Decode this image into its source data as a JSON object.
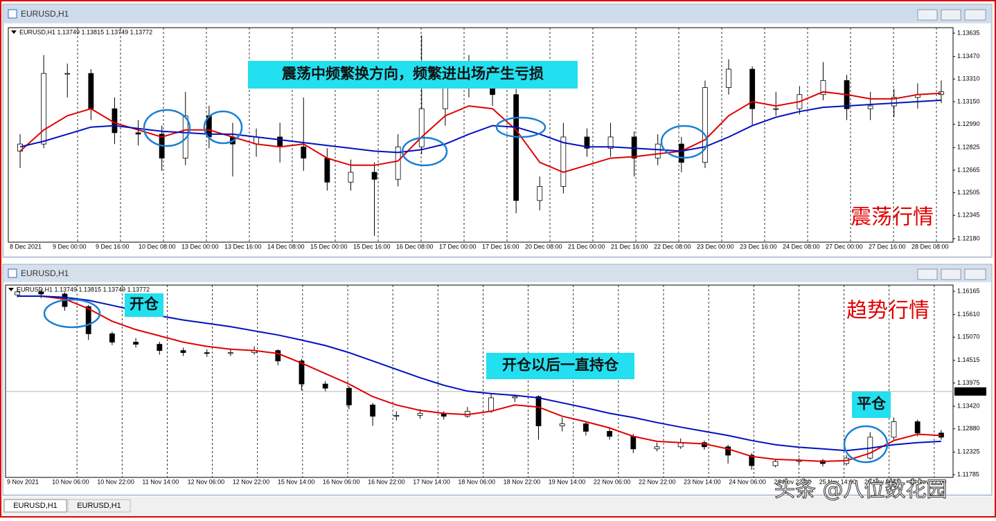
{
  "windows": [
    {
      "title": "EURUSD,H1"
    },
    {
      "title": "EURUSD,H1"
    }
  ],
  "tabs": [
    "EURUSD,H1",
    "EURUSD,H1"
  ],
  "watermark": "头条 @八位数花园",
  "chart_data": [
    {
      "type": "candlestick",
      "info": "EURUSD,H1  1.13749 1.13815 1.13749 1.13772",
      "annotations": [
        {
          "text": "震荡中频繁换方向，频繁进出场产生亏损",
          "style": "highlight"
        },
        {
          "text": "震荡行情",
          "style": "red"
        }
      ],
      "xlabels": [
        "8 Dec 2021",
        "9 Dec 00:00",
        "9 Dec 16:00",
        "10 Dec 08:00",
        "13 Dec 00:00",
        "13 Dec 16:00",
        "14 Dec 08:00",
        "15 Dec 00:00",
        "15 Dec 16:00",
        "16 Dec 08:00",
        "17 Dec 00:00",
        "17 Dec 16:00",
        "20 Dec 08:00",
        "21 Dec 00:00",
        "21 Dec 16:00",
        "22 Dec 08:00",
        "23 Dec 00:00",
        "23 Dec 16:00",
        "24 Dec 08:00",
        "27 Dec 00:00",
        "27 Dec 16:00",
        "28 Dec 08:00"
      ],
      "ylim": [
        1.12155,
        1.13674
      ],
      "yticks": [
        1.13635,
        {
          "value": 1.1347,
          "label": "1.13470"
        },
        {
          "value": 1.1331,
          "label": "1.13310"
        },
        {
          "value": 1.1315,
          "label": "1.13150"
        },
        {
          "value": 1.1299,
          "label": "1.12990"
        },
        1.12825,
        1.12665,
        1.12505,
        1.12345,
        {
          "value": 1.1218,
          "label": "1.12180"
        }
      ],
      "candles": {
        "open": [
          1.128,
          1.1285,
          1.1335,
          1.1335,
          1.131,
          1.1293,
          1.1292,
          1.1275,
          1.1305,
          1.129,
          1.1285,
          1.129,
          1.1283,
          1.1275,
          1.1258,
          1.1265,
          1.126,
          1.1283,
          1.131,
          1.1325,
          1.134,
          1.132,
          1.1245,
          1.1255,
          1.129,
          1.1282,
          1.129,
          1.1275,
          1.1285,
          1.1272,
          1.1325,
          1.1338,
          1.131,
          1.131,
          1.132,
          1.133,
          1.131,
          1.1312,
          1.1318,
          1.132
        ],
        "high": [
          1.1292,
          1.1348,
          1.1342,
          1.1338,
          1.1318,
          1.1302,
          1.1298,
          1.1322,
          1.1312,
          1.13,
          1.1296,
          1.13,
          1.1318,
          1.1282,
          1.1274,
          1.1272,
          1.1292,
          1.1362,
          1.1336,
          1.1348,
          1.1344,
          1.1324,
          1.1262,
          1.13,
          1.1296,
          1.13,
          1.1294,
          1.1292,
          1.129,
          1.133,
          1.1345,
          1.134,
          1.1322,
          1.1326,
          1.1343,
          1.1334,
          1.1322,
          1.1324,
          1.1328,
          1.133
        ],
        "low": [
          1.1268,
          1.1282,
          1.1318,
          1.1302,
          1.1285,
          1.1284,
          1.1266,
          1.127,
          1.1282,
          1.1262,
          1.1276,
          1.1272,
          1.1266,
          1.1252,
          1.1252,
          1.122,
          1.1255,
          1.1278,
          1.1298,
          1.1318,
          1.1312,
          1.1236,
          1.1238,
          1.125,
          1.1276,
          1.1276,
          1.1262,
          1.127,
          1.1265,
          1.1268,
          1.132,
          1.1298,
          1.1305,
          1.1306,
          1.1316,
          1.1302,
          1.1302,
          1.1304,
          1.131,
          1.1314
        ],
        "close": [
          1.1285,
          1.1335,
          1.1335,
          1.131,
          1.1293,
          1.1292,
          1.1275,
          1.1305,
          1.129,
          1.1285,
          1.129,
          1.1283,
          1.1275,
          1.1258,
          1.1265,
          1.126,
          1.1283,
          1.131,
          1.1325,
          1.134,
          1.132,
          1.1245,
          1.1255,
          1.129,
          1.1282,
          1.129,
          1.1275,
          1.1285,
          1.1272,
          1.1325,
          1.1338,
          1.131,
          1.131,
          1.132,
          1.133,
          1.131,
          1.1312,
          1.1318,
          1.132,
          1.1322
        ]
      },
      "series": [
        {
          "color": "#e00000",
          "values": [
            1.128,
            1.1295,
            1.1305,
            1.131,
            1.13,
            1.1295,
            1.129,
            1.1295,
            1.1295,
            1.129,
            1.1285,
            1.1283,
            1.1285,
            1.1275,
            1.127,
            1.127,
            1.1273,
            1.129,
            1.1305,
            1.1312,
            1.131,
            1.1295,
            1.1272,
            1.1265,
            1.127,
            1.1275,
            1.1276,
            1.1278,
            1.128,
            1.1288,
            1.1305,
            1.1315,
            1.1312,
            1.1315,
            1.1322,
            1.132,
            1.1317,
            1.1317,
            1.132,
            1.1321
          ]
        },
        {
          "color": "#0010c0",
          "values": [
            1.1283,
            1.1287,
            1.1292,
            1.1297,
            1.1298,
            1.1296,
            1.1294,
            1.1293,
            1.1292,
            1.1292,
            1.129,
            1.1288,
            1.1286,
            1.1284,
            1.1282,
            1.128,
            1.1279,
            1.1281,
            1.1285,
            1.1292,
            1.1298,
            1.1297,
            1.1292,
            1.1286,
            1.1283,
            1.1283,
            1.1282,
            1.1281,
            1.128,
            1.1283,
            1.129,
            1.1298,
            1.1304,
            1.1308,
            1.1311,
            1.1312,
            1.1313,
            1.1314,
            1.1315,
            1.1316
          ]
        }
      ]
    },
    {
      "type": "candlestick",
      "info": "EURUSD,H1  1.13749 1.13815 1.13749 1.13772",
      "annotations": [
        {
          "text": "开仓",
          "style": "highlight"
        },
        {
          "text": "开仓以后一直持仓",
          "style": "highlight"
        },
        {
          "text": "平仓",
          "style": "highlight"
        },
        {
          "text": "趋势行情",
          "style": "red"
        }
      ],
      "xlabels": [
        "9 Nov 2021",
        "10 Nov 06:00",
        "10 Nov 22:00",
        "11 Nov 14:00",
        "12 Nov 06:00",
        "12 Nov 22:00",
        "15 Nov 14:00",
        "16 Nov 06:00",
        "16 Nov 22:00",
        "17 Nov 14:00",
        "18 Nov 06:00",
        "18 Nov 22:00",
        "19 Nov 14:00",
        "22 Nov 06:00",
        "22 Nov 22:00",
        "23 Nov 14:00",
        "24 Nov 06:00",
        "24 Nov 22:00",
        "25 Nov 14:00",
        "26 Nov 06:00",
        "26 Nov 22:00"
      ],
      "ylim": [
        1.11719,
        1.16314
      ],
      "yticks": [
        1.16165,
        {
          "value": 1.1561,
          "label": "1.15610"
        },
        {
          "value": 1.1507,
          "label": "1.15070"
        },
        1.14515,
        1.13975,
        {
          "value": 1.1342,
          "label": "1.13420"
        },
        {
          "value": 1.1288,
          "label": "1.12880"
        },
        1.12325,
        1.11785
      ],
      "current_price": 1.13772,
      "candles": {
        "open": [
          1.1608,
          1.1615,
          1.161,
          1.158,
          1.1515,
          1.1495,
          1.149,
          1.1475,
          1.147,
          1.1468,
          1.147,
          1.1475,
          1.145,
          1.1395,
          1.1385,
          1.1345,
          1.1318,
          1.132,
          1.1325,
          1.1318,
          1.133,
          1.1362,
          1.1365,
          1.1295,
          1.13,
          1.1282,
          1.127,
          1.124,
          1.1245,
          1.1255,
          1.1245,
          1.1225,
          1.12,
          1.121,
          1.1212,
          1.1205,
          1.1218,
          1.1268,
          1.1305,
          1.1278
        ],
        "high": [
          1.1625,
          1.1622,
          1.1614,
          1.1584,
          1.152,
          1.1505,
          1.1496,
          1.1482,
          1.1478,
          1.148,
          1.1485,
          1.1478,
          1.1455,
          1.1402,
          1.139,
          1.135,
          1.133,
          1.1335,
          1.133,
          1.134,
          1.1372,
          1.137,
          1.1368,
          1.1315,
          1.1306,
          1.1292,
          1.1276,
          1.1255,
          1.1265,
          1.126,
          1.125,
          1.123,
          1.1215,
          1.1218,
          1.1216,
          1.1225,
          1.128,
          1.1315,
          1.131,
          1.1285
        ],
        "low": [
          1.1602,
          1.16,
          1.157,
          1.15,
          1.1488,
          1.1482,
          1.1465,
          1.1462,
          1.146,
          1.1462,
          1.1465,
          1.144,
          1.138,
          1.1378,
          1.1335,
          1.1295,
          1.1308,
          1.1312,
          1.131,
          1.1314,
          1.1326,
          1.1352,
          1.1262,
          1.1282,
          1.1272,
          1.1262,
          1.123,
          1.1234,
          1.124,
          1.1238,
          1.1205,
          1.119,
          1.1196,
          1.1204,
          1.1198,
          1.12,
          1.1215,
          1.1262,
          1.127,
          1.1262
        ],
        "close": [
          1.1615,
          1.161,
          1.158,
          1.1515,
          1.1495,
          1.149,
          1.1475,
          1.147,
          1.1468,
          1.147,
          1.1475,
          1.145,
          1.1395,
          1.1385,
          1.1345,
          1.1318,
          1.132,
          1.1325,
          1.1318,
          1.133,
          1.1362,
          1.1365,
          1.1295,
          1.13,
          1.1282,
          1.127,
          1.124,
          1.1245,
          1.1255,
          1.1245,
          1.1225,
          1.12,
          1.121,
          1.1212,
          1.1205,
          1.1218,
          1.1268,
          1.1305,
          1.1278,
          1.1268
        ]
      },
      "series": [
        {
          "color": "#e00000",
          "values": [
            1.1605,
            1.1605,
            1.1598,
            1.1575,
            1.1545,
            1.1525,
            1.151,
            1.1495,
            1.1485,
            1.1478,
            1.1475,
            1.1468,
            1.1445,
            1.142,
            1.1395,
            1.1365,
            1.1345,
            1.1332,
            1.1325,
            1.1322,
            1.133,
            1.1345,
            1.134,
            1.1318,
            1.1305,
            1.129,
            1.127,
            1.1258,
            1.1255,
            1.1252,
            1.124,
            1.1222,
            1.1215,
            1.1213,
            1.121,
            1.1212,
            1.123,
            1.126,
            1.1275,
            1.1272
          ]
        },
        {
          "color": "#0010c0",
          "values": [
            1.1605,
            1.1605,
            1.1602,
            1.1595,
            1.1583,
            1.157,
            1.1558,
            1.1548,
            1.154,
            1.1532,
            1.1522,
            1.1512,
            1.15,
            1.1487,
            1.147,
            1.145,
            1.143,
            1.141,
            1.1392,
            1.1378,
            1.1372,
            1.1368,
            1.1362,
            1.135,
            1.1338,
            1.1325,
            1.1315,
            1.1303,
            1.1292,
            1.1282,
            1.1272,
            1.126,
            1.125,
            1.1244,
            1.124,
            1.1236,
            1.1242,
            1.125,
            1.1255,
            1.1258
          ]
        }
      ]
    }
  ]
}
